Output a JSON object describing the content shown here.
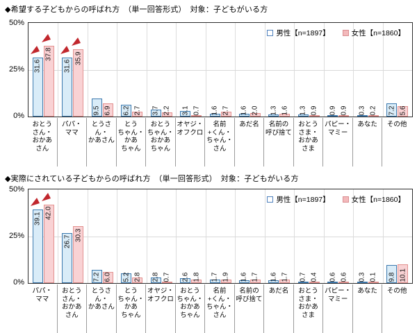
{
  "colors": {
    "male_fill": "#d9ecf8",
    "male_border": "#3b78ad",
    "female_fill": "#f9d2d4",
    "female_border": "#e2918f",
    "arrow_red": "#c1272d",
    "gridline": "#d9d9d9",
    "plot_border": "#2b2b2b"
  },
  "legend": {
    "items": [
      {
        "id": "male",
        "label": "男性【n=1897】"
      },
      {
        "id": "female",
        "label": "女性【n=1860】"
      }
    ]
  },
  "chart_data": [
    {
      "type": "bar",
      "title": "◆希望する子どもからの呼ばれ方　（単一回答形式）　対象：子どもがいる方",
      "ylim": [
        0,
        50
      ],
      "yticks": [
        "50%",
        "25%",
        "0%"
      ],
      "grid": "25%-horizontal and category separators",
      "legend_position": "inside-top-right",
      "categories": [
        "おとうさん・おかあさん",
        "パパ・ママ",
        "とうさん・かあさん",
        "とうちゃん・かあちゃん",
        "おとうちゃん・おかあちゃん",
        "オヤジ・オフクロ",
        "名前+くん・ちゃん・さん",
        "あだ名",
        "名前の呼び捨て",
        "おとうさま・おかあさま",
        "パピー・マミー",
        "あなた",
        "その他"
      ],
      "category_lines": [
        "おとう\nさん・\nおかあ\nさん",
        "パパ・\nママ",
        "とうさん・\nかあさん",
        "とう\nちゃん・\nかあ\nちゃん",
        "おとう\nちゃん・\nおかあ\nちゃん",
        "オヤジ・\nオフクロ",
        "名前\n+くん・\nちゃん・\nさん",
        "あだ名",
        "名前の\n呼び捨て",
        "おとう\nさま・\nおかあ\nさま",
        "パピー・\nマミー",
        "あなた",
        "その他"
      ],
      "series": [
        {
          "name": "男性【n=1897】",
          "values": [
            "31.6",
            "31.6",
            "9.5",
            "6.2",
            "3.7",
            "3.1",
            "1.6",
            "1.6",
            "1.3",
            "1.3",
            "0.9",
            "0.3",
            "7.2"
          ]
        },
        {
          "name": "女性【n=1860】",
          "values": [
            "37.8",
            "35.9",
            "6.9",
            "2.7",
            "2.2",
            "0.7",
            "2.7",
            "2.0",
            "1.6",
            "0.9",
            "0.9",
            "0.2",
            "5.6"
          ]
        }
      ],
      "highlight_arrow_categories": [
        0,
        1
      ]
    },
    {
      "type": "bar",
      "title": "◆実際にされている子どもからの呼ばれ方　（単一回答形式）　対象：子どもがいる方",
      "ylim": [
        0,
        50
      ],
      "yticks": [
        "50%",
        "25%",
        "0%"
      ],
      "grid": "25%-horizontal and category separators",
      "legend_position": "inside-top-right",
      "categories": [
        "パパ・ママ",
        "おとうさん・おかあさん",
        "とうさん・かあさん",
        "とうちゃん・かあちゃん",
        "オヤジ・オフクロ",
        "おとうちゃん・おかあちゃん",
        "名前+くん・ちゃん・さん",
        "名前の呼び捨て",
        "あだ名",
        "おとうさま・おかあさま",
        "パピー・マミー",
        "あなた",
        "その他"
      ],
      "category_lines": [
        "パパ・\nママ",
        "おとう\nさん・\nおかあ\nさん",
        "とうさん・\nかあさん",
        "とう\nちゃん・\nかあ\nちゃん",
        "オヤジ・\nオフクロ",
        "おとう\nちゃん・\nおかあ\nちゃん",
        "名前\n+くん・\nちゃん・\nさん",
        "名前の\n呼び捨て",
        "あだ名",
        "おとう\nさま・\nおかあ\nさま",
        "パピー・\nマミー",
        "あなた",
        "その他"
      ],
      "series": [
        {
          "name": "男性【n=1897】",
          "values": [
            "39.1",
            "26.7",
            "7.2",
            "5.2",
            "2.8",
            "2.6",
            "1.7",
            "1.6",
            "1.6",
            "0.7",
            "0.6",
            "0.3",
            "9.8"
          ]
        },
        {
          "name": "女性【n=1860】",
          "values": [
            "42.0",
            "30.3",
            "6.0",
            "2.8",
            "0.7",
            "1.8",
            "1.9",
            "1.7",
            "1.7",
            "0.4",
            "0.6",
            "0.1",
            "10.1"
          ]
        }
      ],
      "highlight_arrow_categories": [
        0
      ]
    }
  ]
}
